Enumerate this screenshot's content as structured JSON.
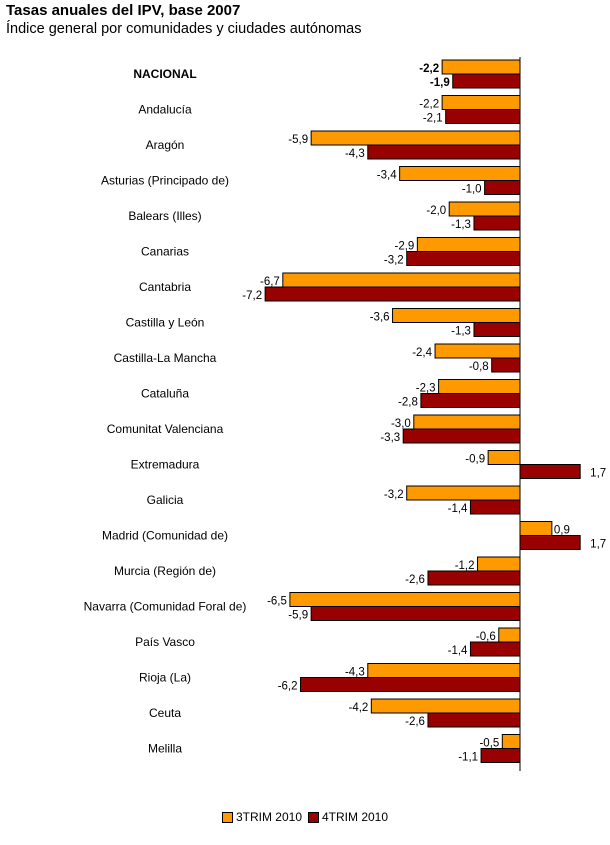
{
  "header": {
    "title": "Tasas anuales del IPV, base 2007",
    "subtitle": "Índice general por comunidades y ciudades autónomas"
  },
  "chart_data": {
    "type": "bar",
    "orientation": "horizontal",
    "title": "Tasas anuales del IPV, base 2007",
    "subtitle": "Índice general por comunidades y ciudades autónomas",
    "categories": [
      "NACIONAL",
      "Andalucía",
      "Aragón",
      "Asturias (Principado de)",
      "Balears (Illes)",
      "Canarias",
      "Cantabria",
      "Castilla y León",
      "Castilla-La Mancha",
      "Cataluña",
      "Comunitat Valenciana",
      "Extremadura",
      "Galicia",
      "Madrid (Comunidad de)",
      "Murcia (Región de)",
      "Navarra (Comunidad Foral de)",
      "País Vasco",
      "Rioja (La)",
      "Ceuta",
      "Melilla"
    ],
    "value_labels": [
      [
        "-2,2",
        "-2,2",
        "-5,9",
        "-3,4",
        "-2,0",
        "-2,9",
        "-6,7",
        "-3,6",
        "-2,4",
        "-2,3",
        "-3,0",
        "-0,9",
        "-3,2",
        "0,9",
        "-1,2",
        "-6,5",
        "-0,6",
        "-4,3",
        "-4,2",
        "-0,5"
      ],
      [
        "-1,9",
        "-2,1",
        "-4,3",
        "-1,0",
        "-1,3",
        "-3,2",
        "-7,2",
        "-1,3",
        "-0,8",
        "-2,8",
        "-3,3",
        "1,7",
        "-1,4",
        "1,7",
        "-2,6",
        "-5,9",
        "-1,4",
        "-6,2",
        "-2,6",
        "-1,1"
      ]
    ],
    "series": [
      {
        "name": "3TRIM 2010",
        "color": "#ff9900",
        "values": [
          -2.2,
          -2.2,
          -5.9,
          -3.4,
          -2.0,
          -2.9,
          -6.7,
          -3.6,
          -2.4,
          -2.3,
          -3.0,
          -0.9,
          -3.2,
          0.9,
          -1.2,
          -6.5,
          -0.6,
          -4.3,
          -4.2,
          -0.5
        ]
      },
      {
        "name": "4TRIM 2010",
        "color": "#990000",
        "values": [
          -1.9,
          -2.1,
          -4.3,
          -1.0,
          -1.3,
          -3.2,
          -7.2,
          -1.3,
          -0.8,
          -2.8,
          -3.3,
          1.7,
          -1.4,
          1.7,
          -2.6,
          -5.9,
          -1.4,
          -6.2,
          -2.6,
          -1.1
        ]
      }
    ],
    "xlim": [
      -7.2,
      1.7
    ],
    "grid": false,
    "legend_position": "bottom",
    "bold_categories": [
      "NACIONAL"
    ]
  }
}
